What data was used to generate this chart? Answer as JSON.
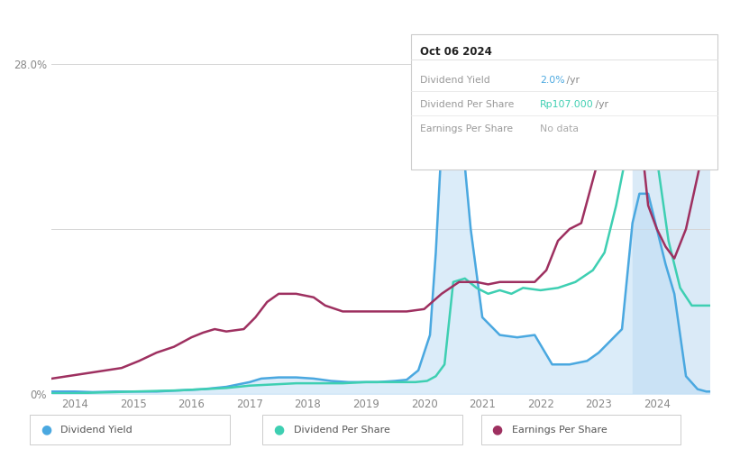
{
  "background_color": "#ffffff",
  "past_bg_color": "#daeaf7",
  "past_start": 2023.58,
  "x_min": 2013.6,
  "x_max": 2024.92,
  "y_min": 0,
  "y_max": 28.0,
  "x_ticks": [
    2014,
    2015,
    2016,
    2017,
    2018,
    2019,
    2020,
    2021,
    2022,
    2023,
    2024
  ],
  "y_ticks": [
    0,
    28.0
  ],
  "y_tick_labels": [
    "0%",
    "28.0%"
  ],
  "grid_lines_y": [
    14.0
  ],
  "tooltip": {
    "date": "Oct 06 2024",
    "rows": [
      {
        "label": "Dividend Yield",
        "value": "2.0%",
        "unit": " /yr",
        "color": "#4aa8e0"
      },
      {
        "label": "Dividend Per Share",
        "value": "Rp107.000",
        "unit": " /yr",
        "color": "#3ecfb2"
      },
      {
        "label": "Earnings Per Share",
        "value": "No data",
        "unit": "",
        "color": "#aaaaaa"
      }
    ]
  },
  "series": {
    "dividend_yield": {
      "color": "#4aa8e0",
      "fill_color": "#beddf5",
      "fill_alpha": 0.55,
      "x": [
        2013.6,
        2014.0,
        2014.3,
        2014.7,
        2015.0,
        2015.4,
        2015.8,
        2016.2,
        2016.6,
        2017.0,
        2017.2,
        2017.5,
        2017.8,
        2018.1,
        2018.4,
        2018.7,
        2019.0,
        2019.2,
        2019.5,
        2019.7,
        2019.9,
        2020.1,
        2020.2,
        2020.35,
        2020.5,
        2020.65,
        2020.8,
        2021.0,
        2021.3,
        2021.6,
        2021.9,
        2022.2,
        2022.5,
        2022.8,
        2023.0,
        2023.2,
        2023.4,
        2023.58,
        2023.7,
        2023.85,
        2024.0,
        2024.15,
        2024.3,
        2024.5,
        2024.7,
        2024.85,
        2024.9
      ],
      "y": [
        0.2,
        0.2,
        0.15,
        0.2,
        0.2,
        0.2,
        0.3,
        0.4,
        0.6,
        1.0,
        1.3,
        1.4,
        1.4,
        1.3,
        1.1,
        1.0,
        1.0,
        1.0,
        1.1,
        1.2,
        2.0,
        5.0,
        12.0,
        26.0,
        27.5,
        22.0,
        14.0,
        6.5,
        5.0,
        4.8,
        5.0,
        2.5,
        2.5,
        2.8,
        3.5,
        4.5,
        5.5,
        14.5,
        17.0,
        17.0,
        14.0,
        11.0,
        8.5,
        1.5,
        0.4,
        0.2,
        0.2
      ]
    },
    "dividend_per_share": {
      "color": "#3ecfb2",
      "x": [
        2013.6,
        2014.0,
        2014.3,
        2014.7,
        2015.0,
        2015.4,
        2015.8,
        2016.2,
        2016.6,
        2017.0,
        2017.4,
        2017.8,
        2018.2,
        2018.6,
        2019.0,
        2019.3,
        2019.6,
        2019.85,
        2020.05,
        2020.2,
        2020.35,
        2020.5,
        2020.7,
        2020.9,
        2021.1,
        2021.3,
        2021.5,
        2021.7,
        2022.0,
        2022.3,
        2022.6,
        2022.9,
        2023.1,
        2023.3,
        2023.5,
        2023.58,
        2023.7,
        2023.85,
        2024.0,
        2024.2,
        2024.4,
        2024.6,
        2024.75,
        2024.85,
        2024.9
      ],
      "y": [
        0.05,
        0.05,
        0.1,
        0.15,
        0.2,
        0.25,
        0.3,
        0.4,
        0.5,
        0.7,
        0.8,
        0.9,
        0.9,
        0.9,
        1.0,
        1.0,
        1.0,
        1.0,
        1.1,
        1.5,
        2.5,
        9.5,
        9.8,
        9.0,
        8.5,
        8.8,
        8.5,
        9.0,
        8.8,
        9.0,
        9.5,
        10.5,
        12.0,
        16.0,
        21.0,
        27.0,
        27.5,
        27.0,
        20.0,
        13.0,
        9.0,
        7.5,
        7.5,
        7.5,
        7.5
      ]
    },
    "earnings_per_share": {
      "color": "#9e3060",
      "x": [
        2013.6,
        2014.0,
        2014.4,
        2014.8,
        2015.1,
        2015.4,
        2015.7,
        2016.0,
        2016.2,
        2016.4,
        2016.6,
        2016.9,
        2017.1,
        2017.3,
        2017.5,
        2017.8,
        2018.1,
        2018.3,
        2018.6,
        2018.9,
        2019.1,
        2019.4,
        2019.7,
        2020.0,
        2020.3,
        2020.6,
        2020.9,
        2021.1,
        2021.3,
        2021.6,
        2021.9,
        2022.1,
        2022.3,
        2022.5,
        2022.7,
        2023.0,
        2023.2,
        2023.4,
        2023.58,
        2023.7,
        2023.85,
        2024.0,
        2024.15,
        2024.3,
        2024.5,
        2024.7,
        2024.85,
        2024.9
      ],
      "y": [
        1.3,
        1.6,
        1.9,
        2.2,
        2.8,
        3.5,
        4.0,
        4.8,
        5.2,
        5.5,
        5.3,
        5.5,
        6.5,
        7.8,
        8.5,
        8.5,
        8.2,
        7.5,
        7.0,
        7.0,
        7.0,
        7.0,
        7.0,
        7.2,
        8.5,
        9.5,
        9.5,
        9.3,
        9.5,
        9.5,
        9.5,
        10.5,
        13.0,
        14.0,
        14.5,
        20.0,
        24.0,
        27.5,
        27.8,
        23.0,
        16.0,
        14.0,
        12.5,
        11.5,
        14.0,
        18.5,
        22.0,
        22.5
      ]
    }
  },
  "legend": [
    {
      "label": "Dividend Yield",
      "color": "#4aa8e0"
    },
    {
      "label": "Dividend Per Share",
      "color": "#3ecfb2"
    },
    {
      "label": "Earnings Per Share",
      "color": "#9e3060"
    }
  ]
}
